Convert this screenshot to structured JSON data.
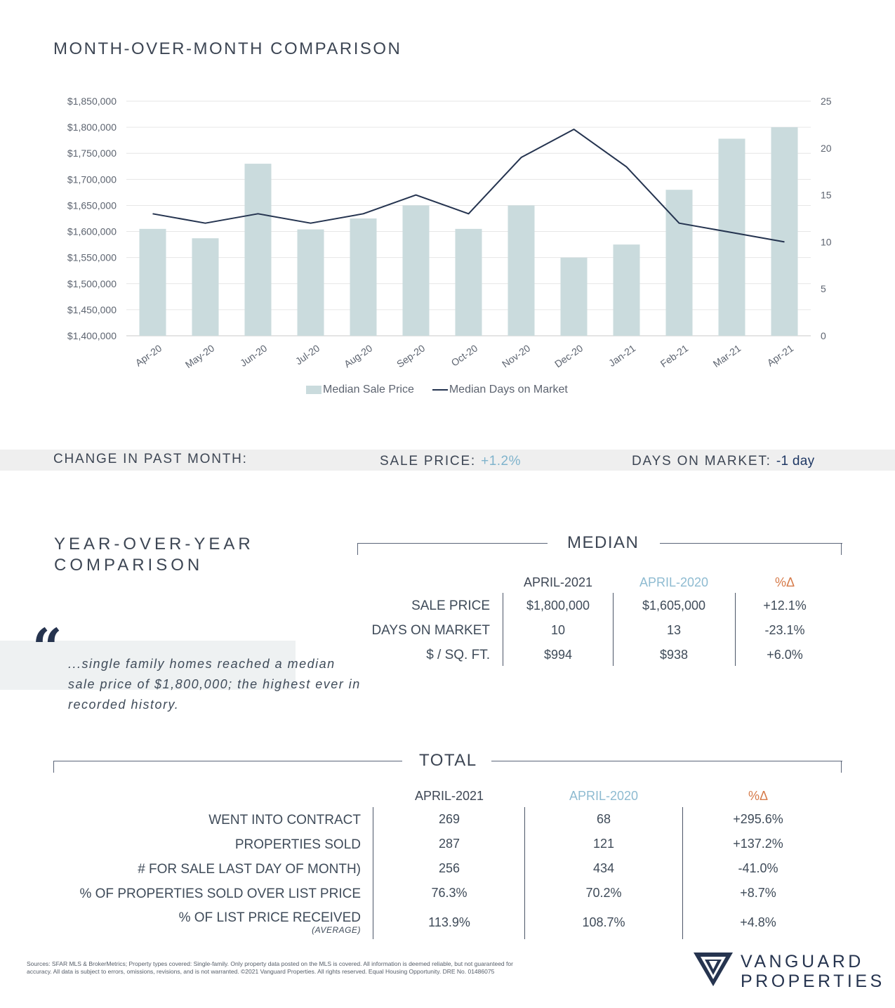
{
  "mom": {
    "title": "MONTH-OVER-MONTH COMPARISON"
  },
  "chart_data": {
    "type": "bar",
    "categories": [
      "Apr-20",
      "May-20",
      "Jun-20",
      "Jul-20",
      "Aug-20",
      "Sep-20",
      "Oct-20",
      "Nov-20",
      "Dec-20",
      "Jan-21",
      "Feb-21",
      "Mar-21",
      "Apr-21"
    ],
    "series": [
      {
        "name": "Median Sale Price",
        "type": "bar",
        "axis": "left",
        "color": "#cadbdd",
        "values": [
          1605000,
          1587000,
          1730000,
          1604000,
          1625000,
          1650000,
          1605000,
          1650000,
          1550000,
          1575000,
          1680000,
          1778000,
          1800000
        ]
      },
      {
        "name": "Median Days on Market",
        "type": "line",
        "axis": "right",
        "color": "#24334f",
        "values": [
          13,
          12,
          13,
          12,
          13,
          15,
          13,
          19,
          22,
          18,
          12,
          11,
          10
        ]
      }
    ],
    "yleft": {
      "min": 1400000,
      "max": 1850000,
      "step": 50000,
      "tick_labels": [
        "$1,400,000",
        "$1,450,000",
        "$1,500,000",
        "$1,550,000",
        "$1,600,000",
        "$1,650,000",
        "$1,700,000",
        "$1,750,000",
        "$1,800,000",
        "$1,850,000"
      ]
    },
    "yright": {
      "min": 0,
      "max": 25,
      "step": 5,
      "tick_labels": [
        "0",
        "5",
        "10",
        "15",
        "20",
        "25"
      ]
    },
    "grid": true,
    "legend_position": "bottom"
  },
  "change": {
    "label": "CHANGE IN PAST MONTH:",
    "sale_price_label": "SALE PRICE:",
    "sale_price_value": "+1.2%",
    "dom_label": "DAYS ON MARKET:",
    "dom_value": "-1 day"
  },
  "yoy": {
    "title_line1": "YEAR-OVER-YEAR",
    "title_line2": "COMPARISON",
    "quote_mark": "“",
    "quote": "...single family homes reached a median sale price of $1,800,000; the highest ever in recorded history."
  },
  "median": {
    "heading": "MEDIAN",
    "col_2021": "APRIL-2021",
    "col_2020": "APRIL-2020",
    "col_pct": "%Δ",
    "rows": [
      {
        "label": "SALE PRICE",
        "v2021": "$1,800,000",
        "v2020": "$1,605,000",
        "pct": "+12.1%"
      },
      {
        "label": "DAYS ON MARKET",
        "v2021": "10",
        "v2020": "13",
        "pct": "-23.1%"
      },
      {
        "label": "$ / SQ. FT.",
        "v2021": "$994",
        "v2020": "$938",
        "pct": "+6.0%"
      }
    ]
  },
  "total": {
    "heading": "TOTAL",
    "col_2021": "APRIL-2021",
    "col_2020": "APRIL-2020",
    "col_pct": "%Δ",
    "rows": [
      {
        "label": "WENT INTO CONTRACT",
        "v2021": "269",
        "v2020": "68",
        "pct": "+295.6%"
      },
      {
        "label": "PROPERTIES SOLD",
        "v2021": "287",
        "v2020": "121",
        "pct": "+137.2%"
      },
      {
        "label": "# FOR SALE LAST DAY OF MONTH)",
        "v2021": "256",
        "v2020": "434",
        "pct": "-41.0%"
      },
      {
        "label": "% OF PROPERTIES SOLD OVER LIST PRICE",
        "v2021": "76.3%",
        "v2020": "70.2%",
        "pct": "+8.7%"
      },
      {
        "label": "% OF LIST PRICE RECEIVED",
        "v2021": "113.9%",
        "v2020": "108.7%",
        "pct": "+4.8%"
      }
    ],
    "avg_note": "(AVERAGE)"
  },
  "footer": {
    "sources_line1": "Sources: SFAR MLS & BrokerMetrics; Property types covered: Single-family. Only property data posted on the MLS is covered. All information is deemed reliable, but not guaranteed for",
    "sources_line2": "accuracy. All data is subject to errors, omissions, revisions, and is not warranted. ©2021 Vanguard Properties. All rights reserved. Equal Housing Opportunity. DRE No. 01486075",
    "logo_line1": "VANGUARD",
    "logo_line2": "PROPERTIES"
  }
}
